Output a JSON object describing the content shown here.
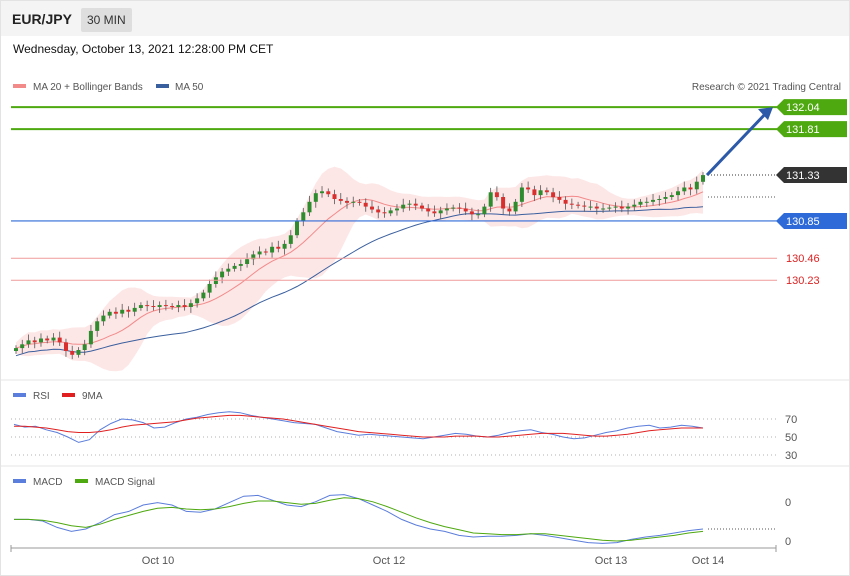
{
  "header": {
    "symbol": "EUR/JPY",
    "timeframe": "30 MIN",
    "date": "Wednesday, October 13, 2021 12:28:00 PM CET"
  },
  "legend": {
    "ma20": "MA 20 + Bollinger Bands",
    "ma50": "MA 50",
    "credit": "Research © 2021 Trading Central"
  },
  "colors": {
    "green": "#4ea80f",
    "blue": "#2f6bd8",
    "red": "#e54545",
    "dark": "#333333",
    "band": "#fde2e2",
    "ma50": "#3a5f9e"
  },
  "chart_data": [
    {
      "type": "candlestick",
      "panel": "price",
      "ylim": [
        129.6,
        132.2
      ],
      "x_ticks": [
        "Oct 10",
        "Oct 12",
        "Oct 13",
        "Oct 14"
      ],
      "price_levels": [
        {
          "value": 132.04,
          "label": "132.04",
          "style": "resistance"
        },
        {
          "value": 131.81,
          "label": "131.81",
          "style": "resistance"
        },
        {
          "value": 131.33,
          "label": "131.33",
          "style": "current"
        },
        {
          "value": 130.85,
          "label": "130.85",
          "style": "pivot"
        },
        {
          "value": 130.46,
          "label": "130.46",
          "style": "support"
        },
        {
          "value": 130.23,
          "label": "130.23",
          "style": "support"
        }
      ],
      "arrow": {
        "from": 131.33,
        "to": 132.04
      },
      "series": [
        {
          "name": "MA 20 + Bollinger Bands"
        },
        {
          "name": "MA 50"
        }
      ],
      "close": [
        129.52,
        129.56,
        129.6,
        129.58,
        129.62,
        129.6,
        129.63,
        129.58,
        129.49,
        129.45,
        129.5,
        129.56,
        129.7,
        129.8,
        129.86,
        129.9,
        129.88,
        129.92,
        129.9,
        129.94,
        129.97,
        129.96,
        129.95,
        129.97,
        129.96,
        129.95,
        129.97,
        129.95,
        129.99,
        130.04,
        130.1,
        130.19,
        130.26,
        130.32,
        130.35,
        130.38,
        130.4,
        130.45,
        130.5,
        130.53,
        130.52,
        130.58,
        130.56,
        130.61,
        130.7,
        130.85,
        130.94,
        131.05,
        131.14,
        131.16,
        131.13,
        131.08,
        131.06,
        131.04,
        131.05,
        131.04,
        131.0,
        130.97,
        130.94,
        130.93,
        130.96,
        130.98,
        131.02,
        131.03,
        131.01,
        130.98,
        130.95,
        130.93,
        130.96,
        130.98,
        130.99,
        130.98,
        130.95,
        130.92,
        130.92,
        131.0,
        131.15,
        131.1,
        130.98,
        130.95,
        131.05,
        131.2,
        131.18,
        131.12,
        131.17,
        131.15,
        131.1,
        131.07,
        131.03,
        131.02,
        131.01,
        131.0,
        131.0,
        130.98,
        130.98,
        130.99,
        131.0,
        130.98,
        131.0,
        131.02,
        131.05,
        131.05,
        131.07,
        131.08,
        131.1,
        131.12,
        131.16,
        131.2,
        131.18,
        131.26,
        131.33
      ]
    },
    {
      "type": "line",
      "panel": "RSI",
      "y_ticks": [
        70,
        50,
        30
      ],
      "series": [
        {
          "name": "RSI",
          "values": [
            64,
            61,
            62,
            58,
            55,
            50,
            44,
            47,
            58,
            65,
            70,
            69,
            66,
            60,
            61,
            66,
            70,
            72,
            75,
            77,
            78,
            77,
            74,
            72,
            70,
            68,
            66,
            65,
            64,
            60,
            56,
            54,
            52,
            53,
            52,
            51,
            50,
            49,
            48,
            50,
            52,
            54,
            53,
            51,
            50,
            52,
            55,
            57,
            58,
            55,
            53,
            50,
            48,
            49,
            52,
            55,
            57,
            60,
            62,
            63,
            60,
            61,
            63,
            62,
            60
          ]
        },
        {
          "name": "9MA",
          "values": [
            62,
            62,
            61,
            60,
            58,
            56,
            55,
            55,
            56,
            58,
            61,
            63,
            64,
            65,
            66,
            67,
            69,
            71,
            72,
            73,
            74,
            74,
            73,
            72,
            71,
            70,
            68,
            66,
            64,
            62,
            60,
            58,
            56,
            55,
            54,
            53,
            52,
            51,
            50,
            50,
            50,
            51,
            51,
            51,
            50,
            50,
            51,
            52,
            53,
            54,
            54,
            54,
            53,
            52,
            51,
            51,
            52,
            53,
            55,
            57,
            58,
            59,
            60,
            60,
            60
          ]
        }
      ]
    },
    {
      "type": "line",
      "panel": "MACD",
      "y_ticks": [
        0,
        0
      ],
      "series": [
        {
          "name": "MACD",
          "values": [
            0.12,
            0.12,
            0.1,
            0.02,
            -0.03,
            0.0,
            0.08,
            0.18,
            0.22,
            0.3,
            0.33,
            0.3,
            0.22,
            0.21,
            0.25,
            0.33,
            0.41,
            0.42,
            0.36,
            0.3,
            0.28,
            0.34,
            0.42,
            0.43,
            0.38,
            0.3,
            0.22,
            0.12,
            0.05,
            0.0,
            -0.03,
            -0.08,
            -0.1,
            -0.09,
            -0.09,
            -0.08,
            -0.06,
            -0.08,
            -0.11,
            -0.14,
            -0.17,
            -0.18,
            -0.17,
            -0.13,
            -0.1,
            -0.08,
            -0.05,
            -0.02,
            0.0
          ]
        },
        {
          "name": "MACD Signal",
          "values": [
            0.12,
            0.12,
            0.11,
            0.08,
            0.04,
            0.02,
            0.06,
            0.12,
            0.17,
            0.22,
            0.26,
            0.27,
            0.25,
            0.24,
            0.25,
            0.28,
            0.32,
            0.35,
            0.35,
            0.33,
            0.31,
            0.32,
            0.36,
            0.39,
            0.38,
            0.34,
            0.28,
            0.21,
            0.14,
            0.08,
            0.03,
            -0.01,
            -0.05,
            -0.06,
            -0.07,
            -0.07,
            -0.06,
            -0.06,
            -0.08,
            -0.1,
            -0.12,
            -0.14,
            -0.15,
            -0.14,
            -0.12,
            -0.1,
            -0.08,
            -0.05,
            -0.03
          ]
        }
      ]
    }
  ]
}
